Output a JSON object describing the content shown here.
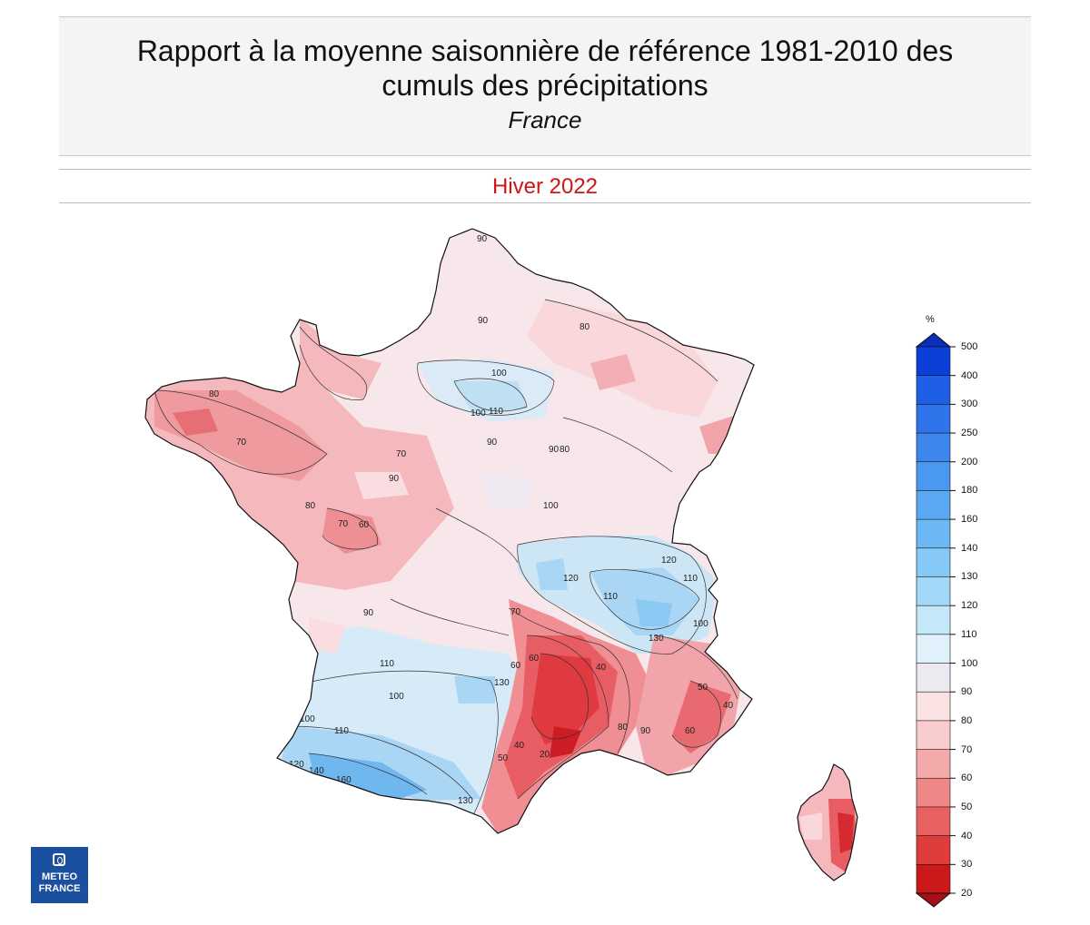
{
  "header": {
    "title_line1": "Rapport à la moyenne saisonnière de référence 1981-2010 des",
    "title_line2": "cumuls des précipitations",
    "region": "France"
  },
  "period": "Hiver 2022",
  "legend": {
    "unit": "%",
    "levels": [
      "500",
      "400",
      "300",
      "250",
      "200",
      "180",
      "160",
      "140",
      "130",
      "120",
      "110",
      "100",
      "90",
      "80",
      "70",
      "60",
      "50",
      "40",
      "30",
      "20"
    ],
    "colors": [
      "#0a3fd8",
      "#1f5fe6",
      "#2f74ea",
      "#3d86ec",
      "#4a98ef",
      "#5aa8f2",
      "#6cb8f5",
      "#86c9f7",
      "#a3d8f8",
      "#c4e7fa",
      "#e0f1fb",
      "#ece9f1",
      "#fbe3e3",
      "#f8cccc",
      "#f4aaaa",
      "#ef8787",
      "#e96060",
      "#df3c3c",
      "#cc1818"
    ]
  },
  "contour_labels": [
    "90",
    "80",
    "90",
    "100",
    "110",
    "100",
    "80",
    "70",
    "60",
    "70",
    "80",
    "90",
    "90",
    "100",
    "120",
    "110",
    "130",
    "120",
    "110",
    "100",
    "90",
    "70",
    "60",
    "50",
    "40",
    "20",
    "40",
    "60",
    "80",
    "90",
    "100",
    "110",
    "120",
    "130",
    "140",
    "160",
    "130",
    "110",
    "100",
    "90",
    "80",
    "70",
    "60",
    "50",
    "40",
    "80",
    "40"
  ],
  "logo": {
    "line1": "METEO",
    "line2": "FRANCE"
  }
}
